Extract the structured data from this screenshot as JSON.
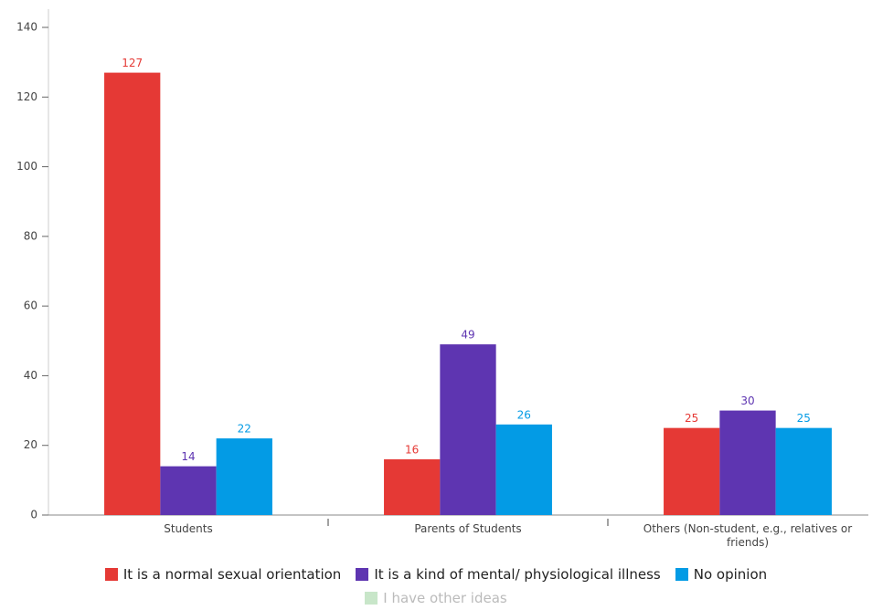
{
  "chart_data": {
    "type": "bar",
    "categories": [
      "Students",
      "Parents of Students",
      "Others (Non-student, e.g., relatives or friends)"
    ],
    "series": [
      {
        "name": "It is a normal sexual orientation",
        "color": "#e53935",
        "values": [
          127,
          16,
          25
        ]
      },
      {
        "name": "It is a kind of mental/ physiological illness",
        "color": "#5e35b1",
        "values": [
          14,
          49,
          30
        ]
      },
      {
        "name": "No opinion",
        "color": "#039be5",
        "values": [
          22,
          26,
          25
        ]
      },
      {
        "name": "I have other ideas",
        "color": "#c8e6c9",
        "values": [
          null,
          null,
          null
        ],
        "hidden": true
      }
    ],
    "ylim": [
      0,
      140
    ],
    "yticks": [
      0,
      20,
      40,
      60,
      80,
      100,
      120,
      140
    ],
    "grid": false,
    "legend": "bottom"
  }
}
